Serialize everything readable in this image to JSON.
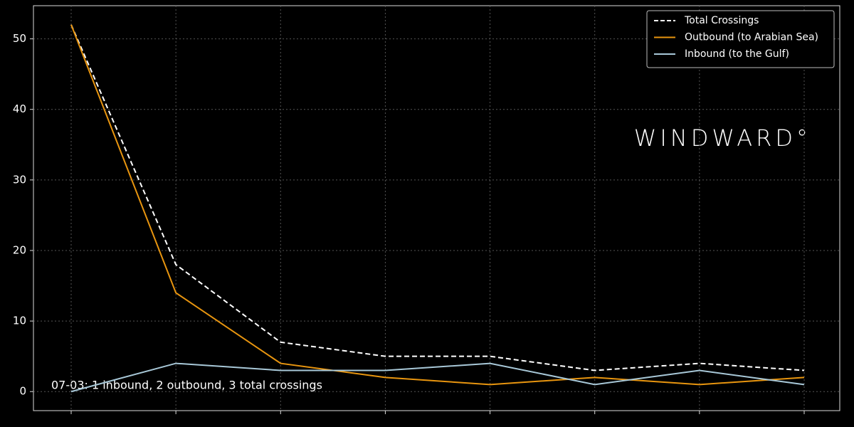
{
  "chart_data": {
    "type": "line",
    "categories": [
      null,
      null,
      null,
      null,
      null,
      null,
      null,
      null
    ],
    "series": [
      {
        "name": "Total Crossings",
        "color": "#ffffff",
        "dashed": true,
        "values": [
          52,
          18,
          7,
          5,
          5,
          3,
          4,
          3
        ]
      },
      {
        "name": "Outbound (to Arabian Sea)",
        "color": "#e8950f",
        "values": [
          52,
          14,
          4,
          2,
          1,
          2,
          1,
          2
        ]
      },
      {
        "name": "Inbound (to the Gulf)",
        "color": "#a8c8d8",
        "values": [
          0,
          4,
          3,
          3,
          4,
          1,
          3,
          1
        ]
      }
    ],
    "ylim": [
      -2.7,
      54.7
    ],
    "yticks": [
      0,
      10,
      20,
      30,
      40,
      50
    ],
    "grid": true,
    "legend": "upper right",
    "annotation": "07-03: 1 inbound, 2 outbound, 3 total crossings",
    "watermark": "WINDWARD°"
  }
}
